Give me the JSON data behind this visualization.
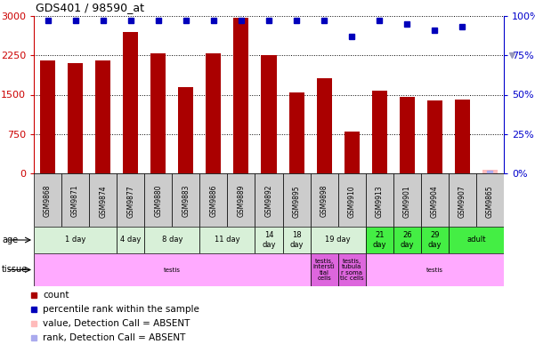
{
  "title": "GDS401 / 98590_at",
  "samples": [
    "GSM9868",
    "GSM9871",
    "GSM9874",
    "GSM9877",
    "GSM9880",
    "GSM9883",
    "GSM9886",
    "GSM9889",
    "GSM9892",
    "GSM9895",
    "GSM9898",
    "GSM9910",
    "GSM9913",
    "GSM9901",
    "GSM9904",
    "GSM9907",
    "GSM9865"
  ],
  "counts": [
    2150,
    2100,
    2150,
    2700,
    2280,
    1650,
    2280,
    2970,
    2260,
    1540,
    1820,
    800,
    1580,
    1460,
    1390,
    1400,
    60
  ],
  "percentile_ranks": [
    97,
    97,
    97,
    97,
    97,
    97,
    97,
    97,
    97,
    97,
    97,
    87,
    97,
    95,
    91,
    93,
    0
  ],
  "absent_flags": [
    false,
    false,
    false,
    false,
    false,
    false,
    false,
    false,
    false,
    false,
    false,
    false,
    false,
    false,
    false,
    false,
    true
  ],
  "ylim_left": [
    0,
    3000
  ],
  "ylim_right": [
    0,
    100
  ],
  "yticks_left": [
    0,
    750,
    1500,
    2250,
    3000
  ],
  "yticks_right": [
    0,
    25,
    50,
    75,
    100
  ],
  "age_groups": [
    {
      "label": "1 day",
      "start": 0,
      "end": 2,
      "color": "#d8f0d8"
    },
    {
      "label": "4 day",
      "start": 3,
      "end": 3,
      "color": "#d8f0d8"
    },
    {
      "label": "8 day",
      "start": 4,
      "end": 5,
      "color": "#d8f0d8"
    },
    {
      "label": "11 day",
      "start": 6,
      "end": 7,
      "color": "#d8f0d8"
    },
    {
      "label": "14\nday",
      "start": 8,
      "end": 8,
      "color": "#d8f0d8"
    },
    {
      "label": "18\nday",
      "start": 9,
      "end": 9,
      "color": "#d8f0d8"
    },
    {
      "label": "19 day",
      "start": 10,
      "end": 11,
      "color": "#d8f0d8"
    },
    {
      "label": "21\nday",
      "start": 12,
      "end": 12,
      "color": "#44ee44"
    },
    {
      "label": "26\nday",
      "start": 13,
      "end": 13,
      "color": "#44ee44"
    },
    {
      "label": "29\nday",
      "start": 14,
      "end": 14,
      "color": "#44ee44"
    },
    {
      "label": "adult",
      "start": 15,
      "end": 16,
      "color": "#44ee44"
    }
  ],
  "tissue_groups": [
    {
      "label": "testis",
      "start": 0,
      "end": 9,
      "color": "#ffaaff"
    },
    {
      "label": "testis,\nintersti\ntial\ncells",
      "start": 10,
      "end": 10,
      "color": "#dd66dd"
    },
    {
      "label": "testis,\ntubula\nr soma\ntic cells",
      "start": 11,
      "end": 11,
      "color": "#dd66dd"
    },
    {
      "label": "testis",
      "start": 12,
      "end": 16,
      "color": "#ffaaff"
    }
  ],
  "bar_color": "#aa0000",
  "absent_bar_color": "#ffbbbb",
  "dot_color_present": "#0000bb",
  "dot_color_absent": "#aaaaee",
  "bar_width": 0.55,
  "axis_color_left": "#cc0000",
  "axis_color_right": "#0000cc",
  "bg_color": "#ffffff",
  "label_bg": "#cccccc"
}
